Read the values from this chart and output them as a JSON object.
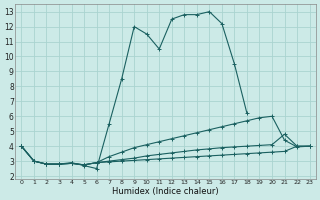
{
  "xlabel": "Humidex (Indice chaleur)",
  "bg_color": "#cceae7",
  "grid_color": "#aad4d0",
  "line_color": "#1a6060",
  "xlim": [
    -0.5,
    23.5
  ],
  "ylim": [
    1.8,
    13.5
  ],
  "xticks": [
    0,
    1,
    2,
    3,
    4,
    5,
    6,
    7,
    8,
    9,
    10,
    11,
    12,
    13,
    14,
    15,
    16,
    17,
    18,
    19,
    20,
    21,
    22,
    23
  ],
  "yticks": [
    2,
    3,
    4,
    5,
    6,
    7,
    8,
    9,
    10,
    11,
    12,
    13
  ],
  "series1_x": [
    0,
    1,
    2,
    3,
    4,
    5,
    6,
    7,
    8,
    9,
    10,
    11,
    12,
    13,
    14,
    15,
    16,
    17,
    18
  ],
  "series1_y": [
    4.0,
    3.0,
    2.8,
    2.8,
    2.9,
    2.7,
    2.5,
    5.5,
    8.5,
    12.0,
    11.5,
    10.5,
    12.5,
    12.8,
    12.8,
    13.0,
    12.2,
    9.5,
    6.2
  ],
  "series2_x": [
    0,
    1,
    2,
    3,
    4,
    5,
    6,
    7,
    8,
    9,
    10,
    11,
    12,
    13,
    14,
    15,
    16,
    17,
    18,
    19,
    20,
    21,
    22,
    23
  ],
  "series2_y": [
    4.0,
    3.0,
    2.8,
    2.8,
    2.85,
    2.75,
    2.9,
    3.3,
    3.6,
    3.9,
    4.1,
    4.3,
    4.5,
    4.7,
    4.9,
    5.1,
    5.3,
    5.5,
    5.7,
    5.9,
    6.0,
    4.4,
    3.95,
    4.0
  ],
  "series3_x": [
    0,
    1,
    2,
    3,
    4,
    5,
    6,
    7,
    8,
    9,
    10,
    11,
    12,
    13,
    14,
    15,
    16,
    17,
    18,
    19,
    20,
    21,
    22,
    23
  ],
  "series3_y": [
    4.0,
    3.0,
    2.8,
    2.8,
    2.85,
    2.75,
    2.9,
    3.0,
    3.1,
    3.2,
    3.35,
    3.45,
    3.55,
    3.65,
    3.75,
    3.82,
    3.9,
    3.95,
    4.0,
    4.05,
    4.1,
    4.8,
    4.0,
    4.0
  ],
  "series4_x": [
    0,
    1,
    2,
    3,
    4,
    5,
    6,
    7,
    8,
    9,
    10,
    11,
    12,
    13,
    14,
    15,
    16,
    17,
    18,
    19,
    20,
    21,
    22,
    23
  ],
  "series4_y": [
    4.0,
    3.0,
    2.8,
    2.8,
    2.85,
    2.75,
    2.9,
    2.95,
    3.0,
    3.05,
    3.1,
    3.15,
    3.2,
    3.25,
    3.3,
    3.35,
    3.4,
    3.45,
    3.5,
    3.55,
    3.6,
    3.65,
    4.0,
    4.0
  ]
}
